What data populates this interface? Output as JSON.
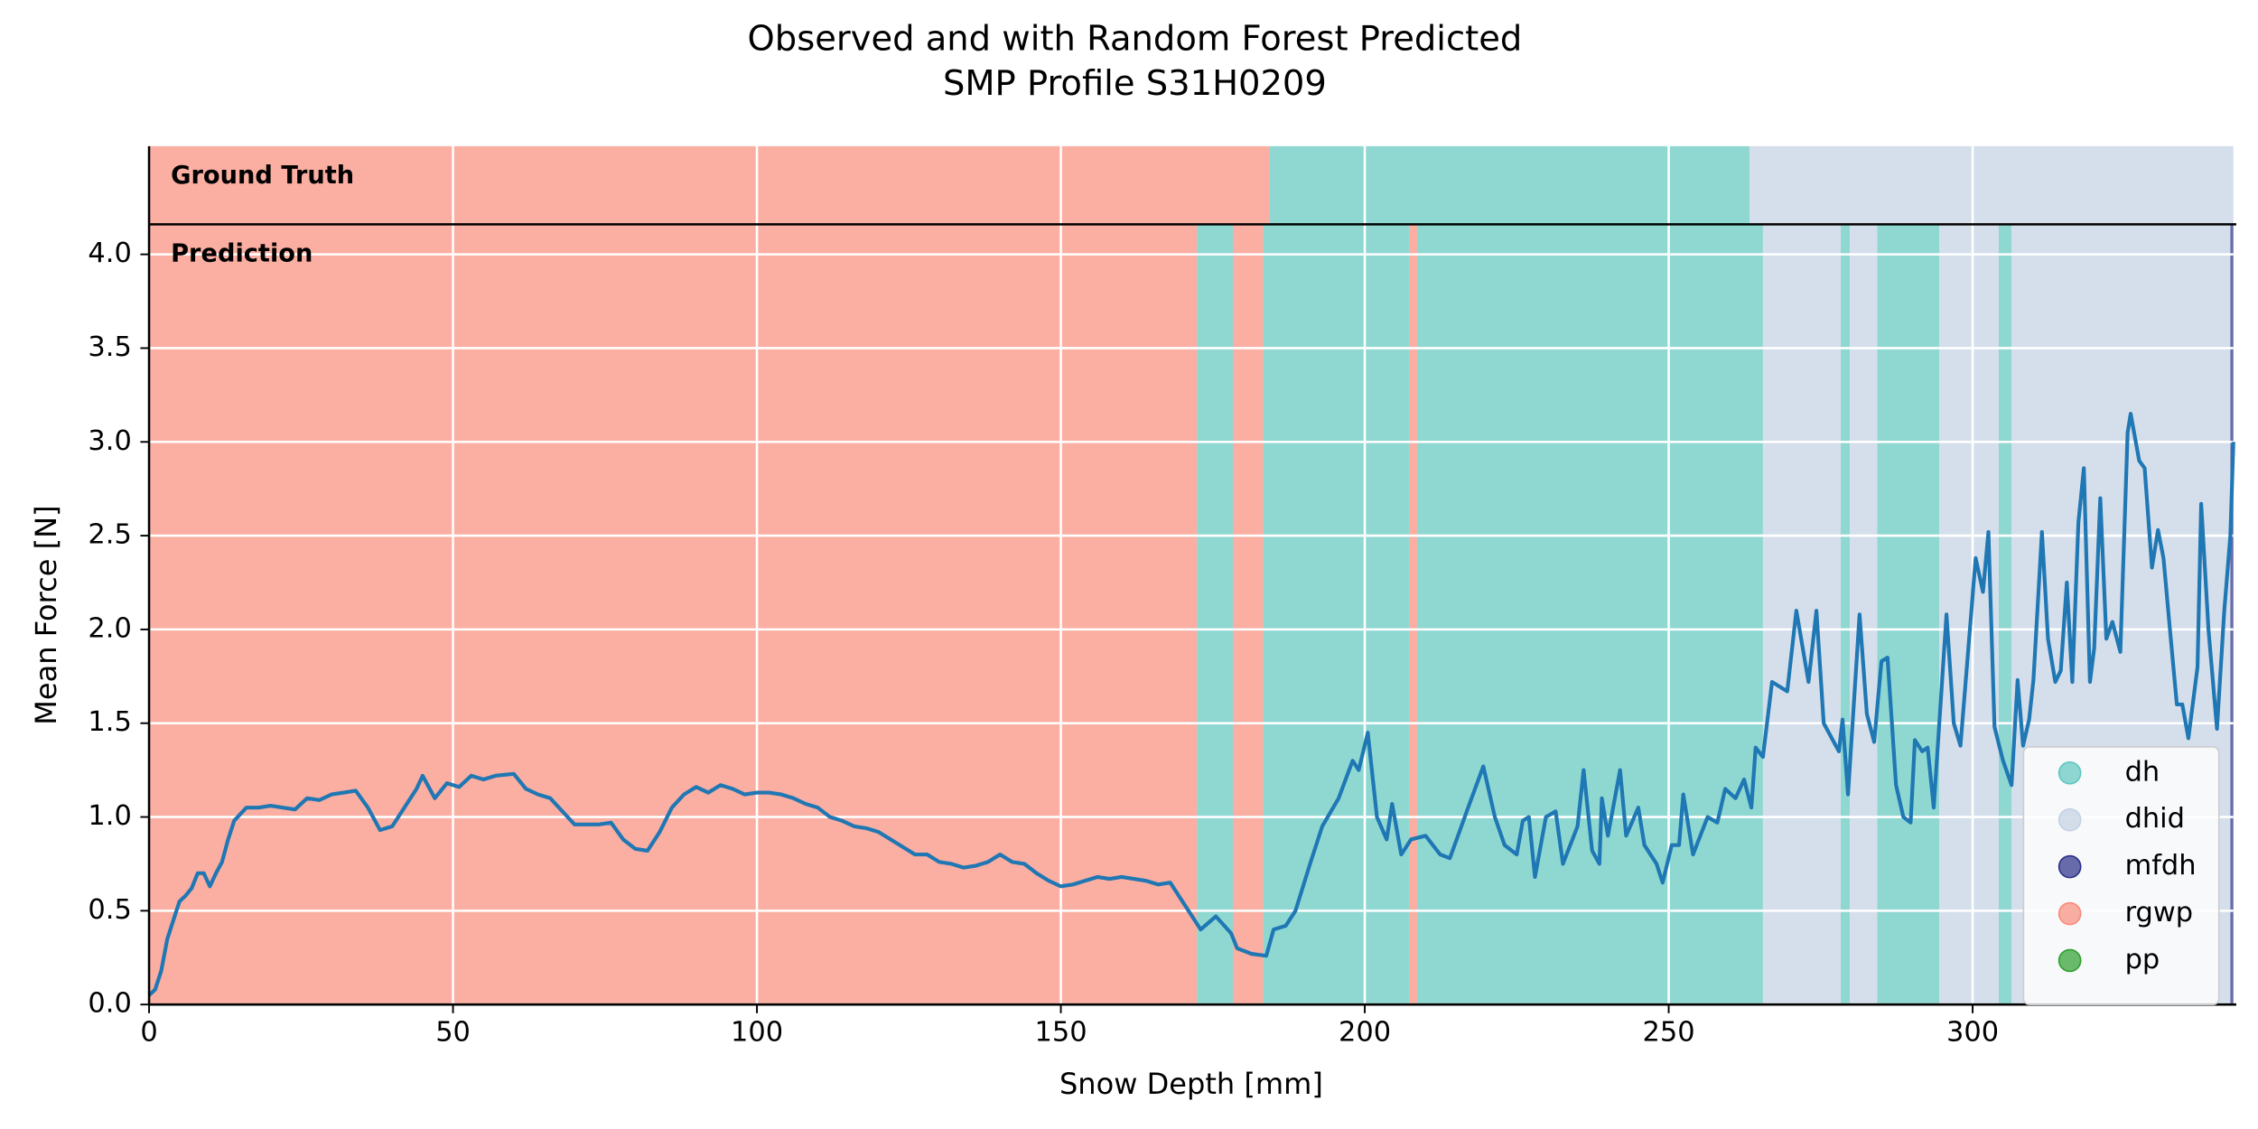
{
  "chart_data": {
    "type": "line",
    "title": "Observed and with Random Forest Predicted",
    "subtitle": "SMP Profile S31H0209",
    "x_label": "Snow Depth [mm]",
    "y_label": "Mean Force [N]",
    "xlim": [
      0,
      342.9
    ],
    "ylim": [
      0,
      4.16
    ],
    "xticks": [
      0,
      50,
      100,
      150,
      200,
      250,
      300
    ],
    "yticks": [
      {
        "value": 0,
        "label": "0.0"
      },
      0.5,
      {
        "value": 1,
        "label": "1.0"
      },
      1.5,
      {
        "value": 2,
        "label": "2.0"
      },
      2.5,
      {
        "value": 3,
        "label": "3.0"
      },
      3.5,
      {
        "value": 4,
        "label": "4.0"
      }
    ],
    "grid": true,
    "line_color": "#1f77b4",
    "x": [
      0,
      1,
      2,
      3,
      4,
      5,
      6,
      7,
      8,
      9,
      10,
      11,
      12,
      13,
      14,
      16,
      18,
      20,
      22,
      24,
      26,
      28,
      30,
      32,
      34,
      36,
      38,
      40,
      42,
      44,
      45,
      47,
      49,
      51,
      53,
      55,
      57,
      60,
      62,
      64,
      66,
      68,
      70,
      72,
      74,
      76,
      78,
      80,
      82,
      84,
      86,
      88,
      90,
      92,
      94,
      96,
      98,
      100,
      102,
      104,
      106,
      108,
      110,
      112,
      114,
      116,
      118,
      120,
      122,
      124,
      126,
      128,
      130,
      132,
      134,
      136,
      138,
      140,
      142,
      144,
      146,
      148,
      150,
      152,
      154,
      156,
      158,
      160,
      162,
      164,
      166,
      168,
      170,
      172,
      173,
      175.5,
      178,
      179,
      181.4,
      183.8,
      185,
      187,
      188.6,
      191,
      193,
      195.7,
      198,
      199,
      200.5,
      202,
      203.6,
      204.5,
      206,
      207.6,
      210,
      212.4,
      214,
      217,
      219.5,
      221.4,
      223,
      225,
      226,
      227,
      228,
      229.8,
      231.4,
      232.6,
      235,
      236,
      237.4,
      238.6,
      239,
      240,
      242,
      243,
      245,
      246,
      248,
      249,
      250.5,
      251.7,
      252.4,
      254,
      256.4,
      258,
      259.3,
      261,
      262.4,
      263.6,
      264.3,
      265.5,
      267,
      269.5,
      271,
      273,
      274.3,
      275.5,
      278,
      278.6,
      279.5,
      281.4,
      282.6,
      283.8,
      285,
      286,
      287.4,
      288.6,
      289.8,
      290.5,
      291.7,
      292.6,
      293.6,
      295.7,
      296.9,
      298,
      300.5,
      301.7,
      302.6,
      303.6,
      305,
      306.4,
      307.4,
      308.3,
      309.3,
      310,
      311.4,
      312.4,
      313.6,
      314.5,
      315.5,
      316.4,
      317.4,
      318.3,
      319.3,
      320,
      321,
      322,
      323,
      324.3,
      325.5,
      326,
      327.4,
      328.3,
      329.5,
      330.5,
      331.4,
      332.6,
      333.6,
      334.5,
      335.5,
      337,
      337.6,
      338.8,
      340.2,
      341.4,
      342.4,
      342.9
    ],
    "values": [
      0.05,
      0.08,
      0.18,
      0.35,
      0.45,
      0.55,
      0.58,
      0.62,
      0.7,
      0.7,
      0.63,
      0.7,
      0.76,
      0.88,
      0.98,
      1.05,
      1.05,
      1.06,
      1.05,
      1.04,
      1.1,
      1.09,
      1.12,
      1.13,
      1.14,
      1.05,
      0.93,
      0.95,
      1.05,
      1.15,
      1.22,
      1.1,
      1.18,
      1.16,
      1.22,
      1.2,
      1.22,
      1.23,
      1.15,
      1.12,
      1.1,
      1.03,
      0.96,
      0.96,
      0.96,
      0.97,
      0.88,
      0.83,
      0.82,
      0.92,
      1.05,
      1.12,
      1.16,
      1.13,
      1.17,
      1.15,
      1.12,
      1.13,
      1.13,
      1.12,
      1.1,
      1.07,
      1.05,
      1.0,
      0.98,
      0.95,
      0.94,
      0.92,
      0.88,
      0.84,
      0.8,
      0.8,
      0.76,
      0.75,
      0.73,
      0.74,
      0.76,
      0.8,
      0.76,
      0.75,
      0.7,
      0.66,
      0.63,
      0.64,
      0.66,
      0.68,
      0.67,
      0.68,
      0.67,
      0.66,
      0.64,
      0.65,
      0.55,
      0.45,
      0.4,
      0.47,
      0.38,
      0.3,
      0.27,
      0.26,
      0.4,
      0.42,
      0.5,
      0.75,
      0.95,
      1.1,
      1.3,
      1.25,
      1.45,
      1.0,
      0.88,
      1.07,
      0.8,
      0.88,
      0.9,
      0.8,
      0.78,
      1.05,
      1.27,
      1.0,
      0.85,
      0.8,
      0.98,
      1.0,
      0.68,
      1.0,
      1.03,
      0.75,
      0.95,
      1.25,
      0.82,
      0.75,
      1.1,
      0.9,
      1.25,
      0.9,
      1.05,
      0.85,
      0.75,
      0.65,
      0.85,
      0.85,
      1.12,
      0.8,
      1.0,
      0.97,
      1.15,
      1.1,
      1.2,
      1.05,
      1.37,
      1.32,
      1.72,
      1.67,
      2.1,
      1.72,
      2.1,
      1.5,
      1.35,
      1.52,
      1.12,
      2.08,
      1.55,
      1.4,
      1.83,
      1.85,
      1.17,
      1.0,
      0.97,
      1.41,
      1.35,
      1.37,
      1.05,
      2.08,
      1.5,
      1.38,
      2.38,
      2.2,
      2.52,
      1.48,
      1.3,
      1.17,
      1.73,
      1.38,
      1.52,
      1.73,
      2.52,
      1.95,
      1.72,
      1.78,
      2.25,
      1.72,
      2.57,
      2.86,
      1.72,
      1.9,
      2.7,
      1.95,
      2.04,
      1.88,
      3.05,
      3.15,
      2.9,
      2.86,
      2.33,
      2.53,
      2.38,
      1.95,
      1.6,
      1.6,
      1.42,
      1.8,
      2.67,
      2.0,
      1.47,
      2.1,
      2.5,
      3.0
    ],
    "classes": [
      {
        "name": "dh",
        "color": "#5fc7bf"
      },
      {
        "name": "dhid",
        "color": "#c3d1e2"
      },
      {
        "name": "mfdh",
        "color": "#2a2f87"
      },
      {
        "name": "rgwp",
        "color": "#f98b7a"
      },
      {
        "name": "pp",
        "color": "#2ca02c"
      }
    ],
    "panels": [
      {
        "label": "Ground Truth",
        "segments": [
          {
            "class": "rgwp",
            "start": 0,
            "end": 184.3
          },
          {
            "class": "dh",
            "start": 184.3,
            "end": 263.3
          },
          {
            "class": "dhid",
            "start": 263.3,
            "end": 342.9
          }
        ]
      },
      {
        "label": "Prediction",
        "segments": [
          {
            "class": "rgwp",
            "start": 0,
            "end": 172.4
          },
          {
            "class": "dh",
            "start": 172.4,
            "end": 178.3
          },
          {
            "class": "rgwp",
            "start": 178.3,
            "end": 183.3
          },
          {
            "class": "dh",
            "start": 183.3,
            "end": 207.4
          },
          {
            "class": "rgwp",
            "start": 207.4,
            "end": 208.6
          },
          {
            "class": "dh",
            "start": 208.6,
            "end": 265.5
          },
          {
            "class": "dhid",
            "start": 265.5,
            "end": 278.3
          },
          {
            "class": "dh",
            "start": 278.3,
            "end": 279.8
          },
          {
            "class": "dhid",
            "start": 279.8,
            "end": 284.3
          },
          {
            "class": "dh",
            "start": 284.3,
            "end": 294.5
          },
          {
            "class": "dhid",
            "start": 294.5,
            "end": 304.3
          },
          {
            "class": "dh",
            "start": 304.3,
            "end": 306.4
          },
          {
            "class": "dhid",
            "start": 306.4,
            "end": 342.4
          },
          {
            "class": "mfdh",
            "start": 342.4,
            "end": 342.9
          }
        ]
      }
    ]
  }
}
